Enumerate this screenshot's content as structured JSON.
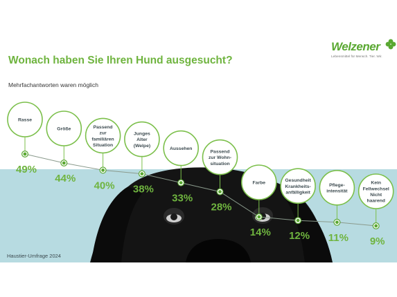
{
  "title": "Wonach haben Sie Ihren Hund ausgesucht?",
  "subtitle": "Mehrfachantworten waren möglich",
  "source": "Haustier-Umfrage 2024",
  "brand": {
    "name": "Welzener",
    "tagline": "Lebensmittel für Mensch. Tier. Wir."
  },
  "colors": {
    "accent": "#6fb43f",
    "bubble_stroke": "#7bbf4a",
    "dot": "#5aa832",
    "photo_bg": "#b7dbe1"
  },
  "chart_data": {
    "type": "line",
    "title": "Wonach haben Sie Ihren Hund ausgesucht?",
    "subtitle": "Mehrfachantworten waren möglich",
    "unit": "%",
    "categories": [
      [
        "Rasse"
      ],
      [
        "Größe"
      ],
      [
        "Passend",
        "zur",
        "familiären",
        "Situation"
      ],
      [
        "Junges",
        "Alter",
        "(Welpe)"
      ],
      [
        "Aussehen"
      ],
      [
        "Passend",
        "zur Wohn-",
        "situation"
      ],
      [
        "Farbe"
      ],
      [
        "Gesundheit",
        "Krankheits-",
        "anfälligkeit"
      ],
      [
        "Pflege-",
        "intensität"
      ],
      [
        "Kein",
        "Fellwechsel",
        "Nicht",
        "haarend"
      ]
    ],
    "values": [
      49,
      44,
      40,
      38,
      33,
      28,
      14,
      12,
      11,
      9
    ],
    "value_labels": [
      "49%",
      "44%",
      "40%",
      "38%",
      "33%",
      "28%",
      "14%",
      "12%",
      "11%",
      "9%"
    ],
    "grid": false,
    "legend": "none"
  }
}
